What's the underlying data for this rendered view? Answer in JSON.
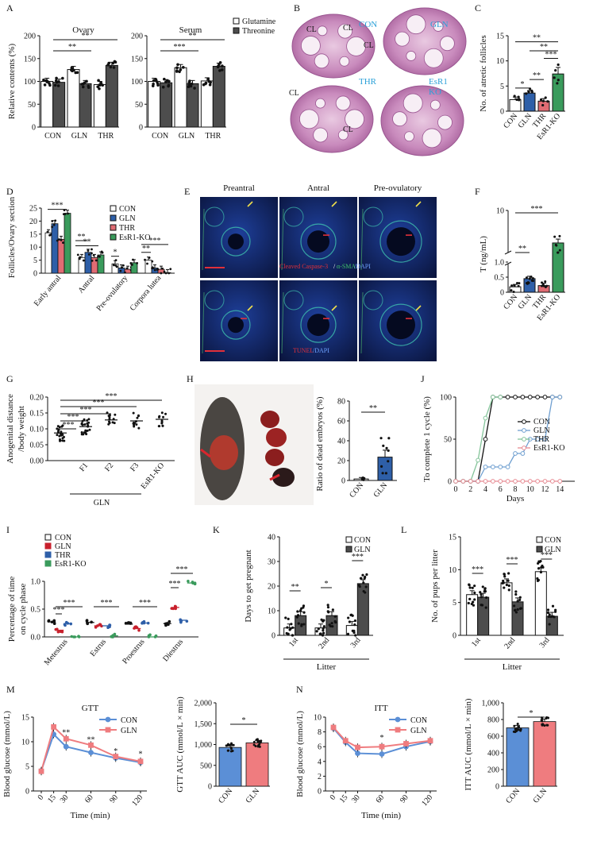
{
  "colors": {
    "con": "#ffffff",
    "gln": "#2e5fa8",
    "thr": "#e06c73",
    "esr1ko": "#3a9b5c",
    "glutamine": "#ffffff",
    "threonine": "#4d4d4d",
    "line_con": "#111111",
    "line_gln": "#6f9fd0",
    "line_thr": "#84c49a",
    "line_esr1ko": "#e88b93",
    "gtt_con": "#5b8fd6",
    "gtt_gln": "#ef7c7f",
    "micro_label": "#2aa0d8"
  },
  "panels": {
    "A": "A",
    "B": "B",
    "C": "C",
    "D": "D",
    "E": "E",
    "F": "F",
    "G": "G",
    "H": "H",
    "I": "I",
    "J": "J",
    "K": "K",
    "L": "L",
    "M": "M",
    "N": "N"
  },
  "micrographs": {
    "B": {
      "labels": [
        "CON",
        "GLN",
        "THR",
        "EsR1",
        "KO"
      ],
      "cl": "CL"
    },
    "E": {
      "col_titles": [
        "Preantral",
        "Antral",
        "Pre-ovulatory"
      ],
      "row1_stain": [
        "Cleaved Caspase-3",
        "/",
        "α-SMA",
        "/DAPI"
      ],
      "row2_stain": [
        "TUNEL",
        "/DAPI"
      ]
    },
    "H": {}
  },
  "significance": {
    "A1": [
      "**",
      "**"
    ],
    "A2": [
      "***",
      "**"
    ],
    "C": [
      "*",
      "**",
      "**",
      "**",
      "***"
    ],
    "D": [
      "***",
      "**",
      "**",
      "*",
      "**",
      "***"
    ],
    "F": [
      "**",
      "***"
    ],
    "G": [
      "***",
      "***",
      "***",
      "***",
      "***"
    ],
    "H": [
      "**"
    ],
    "I": [
      "***",
      "***",
      "***",
      "***",
      "***",
      "***"
    ],
    "K": [
      "**",
      "*",
      "***"
    ],
    "L": [
      "***",
      "***",
      "***"
    ],
    "M": [
      "**",
      "**",
      "*",
      "*"
    ],
    "N": [
      "*",
      "*"
    ]
  },
  "chart_data": [
    {
      "id": "A1",
      "type": "bar",
      "title": "Ovary",
      "ylabel": "Relative contents (%)",
      "categories": [
        "CON",
        "GLN",
        "THR"
      ],
      "ylim": [
        0,
        200
      ],
      "yticks": [
        0,
        50,
        100,
        150,
        200
      ],
      "series": [
        {
          "name": "Glutamine",
          "values": [
            100,
            126,
            93
          ]
        },
        {
          "name": "Threonine",
          "values": [
            98,
            95,
            135
          ]
        }
      ]
    },
    {
      "id": "A2",
      "type": "bar",
      "title": "Serum",
      "categories": [
        "CON",
        "GLN",
        "THR"
      ],
      "ylim": [
        0,
        200
      ],
      "yticks": [
        0,
        50,
        100,
        150,
        200
      ],
      "series": [
        {
          "name": "Glutamine",
          "values": [
            100,
            130,
            101
          ]
        },
        {
          "name": "Threonine",
          "values": [
            97,
            95,
            133
          ]
        }
      ]
    },
    {
      "id": "C",
      "type": "bar",
      "ylabel": "No. of atretic follicles",
      "categories": [
        "CON",
        "GLN",
        "THR",
        "EsR1-KO"
      ],
      "ylim": [
        0,
        15
      ],
      "yticks": [
        0,
        5,
        10,
        15
      ],
      "values": [
        2.3,
        3.6,
        2.0,
        7.4
      ]
    },
    {
      "id": "D",
      "type": "bar",
      "ylabel": "Follicles/Ovary section",
      "categories": [
        "Early antral",
        "Antral",
        "Pre-ovulatory",
        "Corpora lutea"
      ],
      "ylim": [
        0,
        25
      ],
      "yticks": [
        0,
        5,
        10,
        15,
        20,
        25
      ],
      "series": [
        {
          "name": "CON",
          "values": [
            15.5,
            6.0,
            3.6,
            5.0
          ]
        },
        {
          "name": "GLN",
          "values": [
            19.0,
            8.0,
            2.0,
            2.0
          ]
        },
        {
          "name": "THR",
          "values": [
            13.0,
            6.0,
            1.5,
            1.5
          ]
        },
        {
          "name": "EsR1-KO",
          "values": [
            23.0,
            7.0,
            4.0,
            0.2
          ]
        }
      ]
    },
    {
      "id": "F",
      "type": "bar",
      "ylabel": "T (ng/mL)",
      "categories": [
        "CON",
        "GLN",
        "THR",
        "EsR1-KO"
      ],
      "yticks": [
        "0",
        "0.5",
        "1.0",
        "10"
      ],
      "values": [
        0.18,
        0.45,
        0.22,
        3.3
      ]
    },
    {
      "id": "G",
      "type": "scatter",
      "ylabel": "Anogenital distance /body weight",
      "categories": [
        "CON",
        "F1",
        "F2",
        "F3",
        "EsR1-KO"
      ],
      "group_label": "GLN",
      "ylim": [
        0,
        0.2
      ],
      "yticks": [
        "0.00",
        "0.05",
        "0.10",
        "0.15",
        "0.20"
      ],
      "values": [
        0.087,
        0.107,
        0.128,
        0.125,
        0.13
      ]
    },
    {
      "id": "H",
      "type": "bar",
      "ylabel": "Ratio of dead embryos (%)",
      "categories": [
        "CON",
        "GLN"
      ],
      "ylim": [
        0,
        80
      ],
      "yticks": [
        0,
        20,
        40,
        60,
        80
      ],
      "values": [
        1.5,
        23.5
      ]
    },
    {
      "id": "J",
      "type": "line",
      "ylabel": "To complete 1 cycle (%)",
      "xlabel": "Days",
      "xlim": [
        0,
        16
      ],
      "xticks": [
        0,
        2,
        4,
        6,
        8,
        10,
        12,
        14
      ],
      "ylim": [
        0,
        100
      ],
      "yticks": [
        0,
        50,
        100
      ],
      "series": [
        {
          "name": "CON",
          "x": [
            0,
            1,
            2,
            3,
            4,
            5,
            6,
            7,
            8,
            9,
            10,
            11,
            12,
            13,
            14
          ],
          "y": [
            0,
            0,
            0,
            0,
            50,
            100,
            100,
            100,
            100,
            100,
            100,
            100,
            100,
            100,
            100
          ]
        },
        {
          "name": "GLN",
          "x": [
            0,
            1,
            2,
            3,
            4,
            5,
            6,
            7,
            8,
            9,
            10,
            11,
            12,
            13,
            14
          ],
          "y": [
            0,
            0,
            0,
            0,
            17,
            17,
            17,
            17,
            33,
            33,
            50,
            50,
            50,
            100,
            100
          ]
        },
        {
          "name": "THR",
          "x": [
            0,
            1,
            2,
            3,
            4,
            5,
            6
          ],
          "y": [
            0,
            0,
            0,
            25,
            75,
            100,
            100
          ]
        },
        {
          "name": "EsR1-KO",
          "x": [
            0,
            1,
            2,
            3,
            4,
            5,
            6,
            7,
            8,
            9,
            10,
            11,
            12,
            13,
            14
          ],
          "y": [
            0,
            0,
            0,
            0,
            0,
            0,
            0,
            0,
            0,
            0,
            0,
            0,
            0,
            0,
            0
          ]
        }
      ]
    },
    {
      "id": "I",
      "type": "scatter",
      "ylabel": "Percentage of time on cycle phase",
      "categories": [
        "Metestrus",
        "Estrus",
        "Proestrus",
        "Diestrus"
      ],
      "ylim": [
        0,
        1
      ],
      "yticks": [
        "0.0",
        "0.5",
        "1.0"
      ],
      "series": [
        {
          "name": "CON",
          "values": [
            0.27,
            0.26,
            0.23,
            0.24
          ]
        },
        {
          "name": "GLN",
          "values": [
            0.12,
            0.2,
            0.15,
            0.53
          ]
        },
        {
          "name": "THR",
          "values": [
            0.24,
            0.2,
            0.25,
            0.3
          ]
        },
        {
          "name": "EsR1-KO",
          "values": [
            0.0,
            0.02,
            0.0,
            0.97
          ]
        }
      ]
    },
    {
      "id": "K",
      "type": "bar",
      "ylabel": "Days to get pregnant",
      "xlabel": "Litter",
      "categories": [
        "1st",
        "2nd",
        "3rd"
      ],
      "ylim": [
        0,
        40
      ],
      "yticks": [
        0,
        10,
        20,
        30,
        40
      ],
      "series": [
        {
          "name": "CON",
          "values": [
            3,
            3,
            4
          ]
        },
        {
          "name": "GLN",
          "values": [
            8,
            8,
            21
          ]
        }
      ]
    },
    {
      "id": "L",
      "type": "bar",
      "ylabel": "No. of pups per litter",
      "xlabel": "Litter",
      "categories": [
        "1st",
        "2nd",
        "3rd"
      ],
      "ylim": [
        0,
        15
      ],
      "yticks": [
        0,
        5,
        10,
        15
      ],
      "series": [
        {
          "name": "CON",
          "values": [
            6.2,
            8.0,
            9.7
          ]
        },
        {
          "name": "GLN",
          "values": [
            5.8,
            5.1,
            2.9
          ]
        }
      ]
    },
    {
      "id": "M1",
      "type": "line",
      "title": "GTT",
      "ylabel": "Blood glucose (mmol/L)",
      "xlabel": "Time (min)",
      "x": [
        0,
        15,
        30,
        60,
        90,
        120
      ],
      "ylim": [
        0,
        15
      ],
      "yticks": [
        0,
        5,
        10,
        15
      ],
      "series": [
        {
          "name": "CON",
          "values": [
            4.1,
            11.5,
            9.0,
            7.8,
            6.7,
            5.8
          ]
        },
        {
          "name": "GLN",
          "values": [
            4.0,
            13.0,
            10.6,
            9.3,
            7.0,
            6.0
          ]
        }
      ]
    },
    {
      "id": "M2",
      "type": "bar",
      "ylabel": "GTT AUC (mmol/L × min)",
      "categories": [
        "CON",
        "GLN"
      ],
      "ylim": [
        0,
        2000
      ],
      "yticks": [
        "0",
        "500",
        "1,000",
        "1,500",
        "2,000"
      ],
      "values": [
        930,
        1040
      ]
    },
    {
      "id": "N1",
      "type": "line",
      "title": "ITT",
      "ylabel": "Blood glucose (mmol/L)",
      "xlabel": "Time (min)",
      "x": [
        0,
        15,
        30,
        60,
        90,
        120
      ],
      "ylim": [
        0,
        10
      ],
      "yticks": [
        0,
        2,
        4,
        6,
        8,
        10
      ],
      "series": [
        {
          "name": "CON",
          "values": [
            8.5,
            6.6,
            5.1,
            5.0,
            6.0,
            6.7
          ]
        },
        {
          "name": "GLN",
          "values": [
            8.6,
            6.8,
            5.9,
            6.0,
            6.4,
            6.8
          ]
        }
      ]
    },
    {
      "id": "N2",
      "type": "bar",
      "ylabel": "ITT AUC (mmol/L × min)",
      "categories": [
        "CON",
        "GLN"
      ],
      "ylim": [
        0,
        1000
      ],
      "yticks": [
        "0",
        "200",
        "400",
        "600",
        "800",
        "1,000"
      ],
      "values": [
        700,
        775
      ]
    }
  ]
}
